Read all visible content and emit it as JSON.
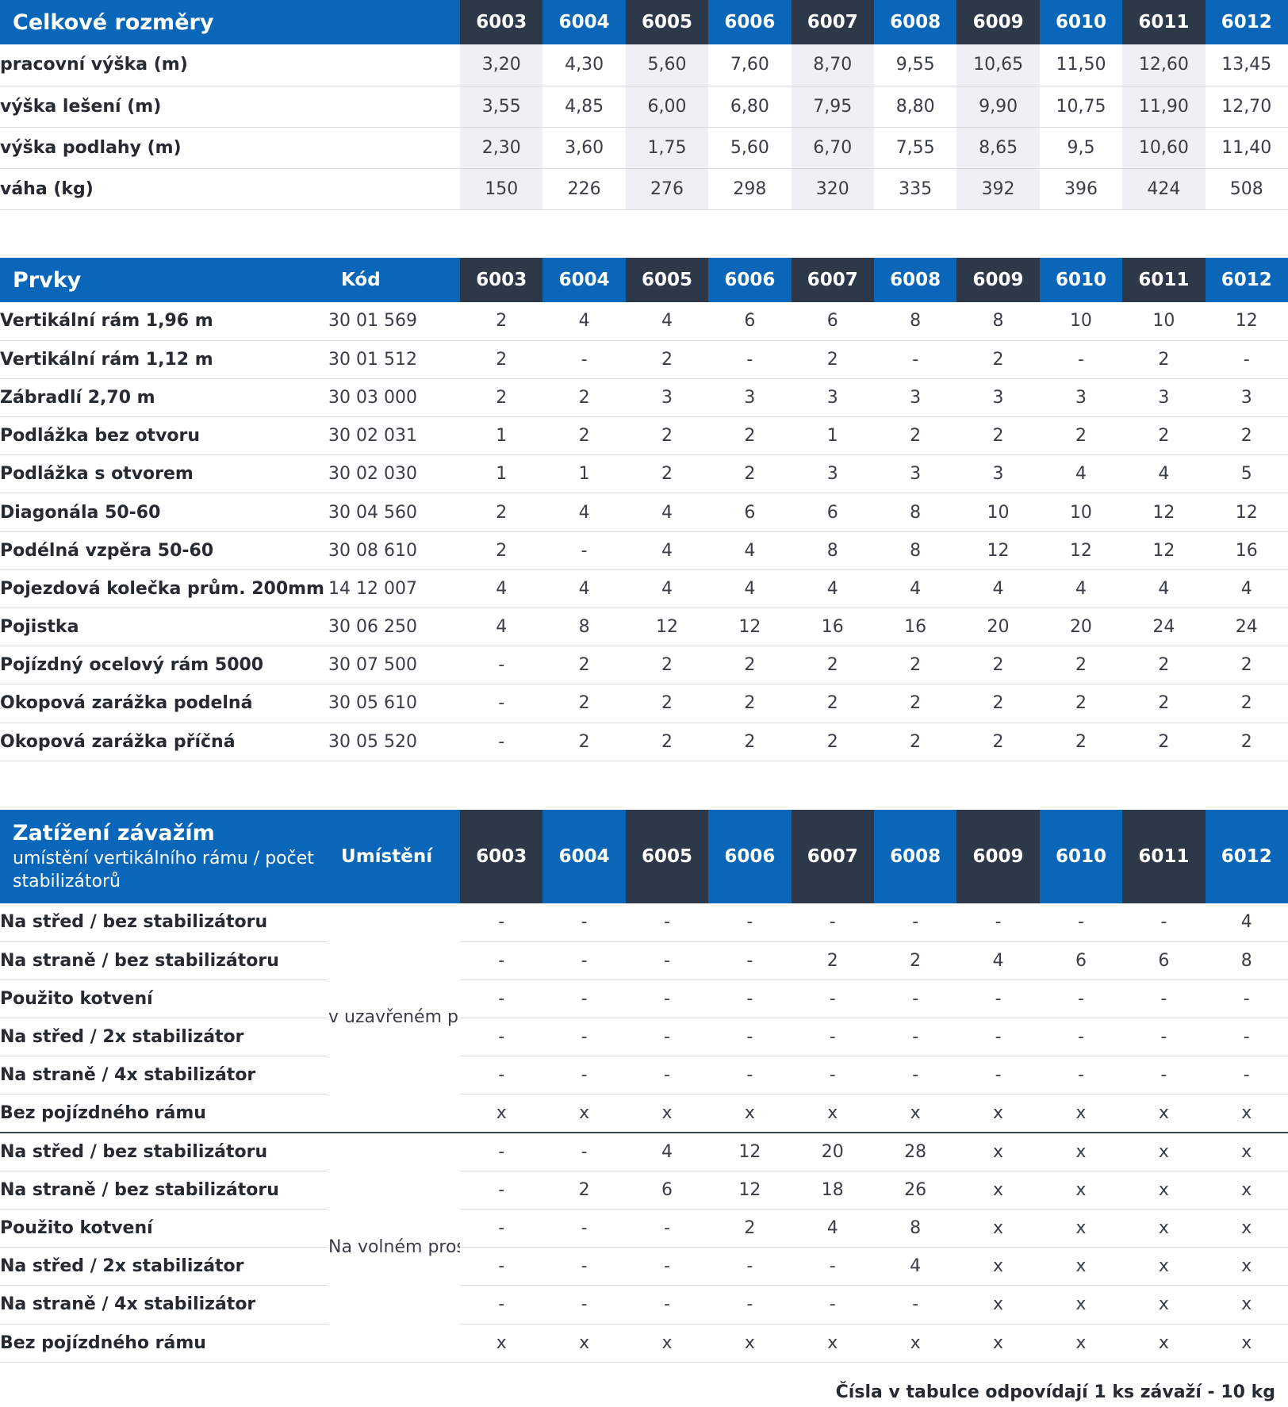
{
  "models": [
    "6003",
    "6004",
    "6005",
    "6006",
    "6007",
    "6008",
    "6009",
    "6010",
    "6011",
    "6012"
  ],
  "dimensions": {
    "title": "Celkové rozměry",
    "rows": [
      {
        "label": "pracovní výška (m)",
        "values": [
          "3,20",
          "4,30",
          "5,60",
          "7,60",
          "8,70",
          "9,55",
          "10,65",
          "11,50",
          "12,60",
          "13,45"
        ]
      },
      {
        "label": "výška lešení (m)",
        "values": [
          "3,55",
          "4,85",
          "6,00",
          "6,80",
          "7,95",
          "8,80",
          "9,90",
          "10,75",
          "11,90",
          "12,70"
        ]
      },
      {
        "label": "výška podlahy (m)",
        "values": [
          "2,30",
          "3,60",
          "1,75",
          "5,60",
          "6,70",
          "7,55",
          "8,65",
          "9,5",
          "10,60",
          "11,40"
        ]
      },
      {
        "label": "váha (kg)",
        "values": [
          "150",
          "226",
          "276",
          "298",
          "320",
          "335",
          "392",
          "396",
          "424",
          "508"
        ]
      }
    ]
  },
  "elements": {
    "title": "Prvky",
    "code_header": "Kód",
    "rows": [
      {
        "label": "Vertikální rám 1,96 m",
        "code": "30 01 569",
        "values": [
          "2",
          "4",
          "4",
          "6",
          "6",
          "8",
          "8",
          "10",
          "10",
          "12"
        ]
      },
      {
        "label": "Vertikální rám 1,12 m",
        "code": "30 01 512",
        "values": [
          "2",
          "-",
          "2",
          "-",
          "2",
          "-",
          "2",
          "-",
          "2",
          "-"
        ]
      },
      {
        "label": "Zábradlí 2,70 m",
        "code": "30 03 000",
        "values": [
          "2",
          "2",
          "3",
          "3",
          "3",
          "3",
          "3",
          "3",
          "3",
          "3"
        ]
      },
      {
        "label": "Podlážka bez otvoru",
        "code": "30 02 031",
        "values": [
          "1",
          "2",
          "2",
          "2",
          "1",
          "2",
          "2",
          "2",
          "2",
          "2"
        ]
      },
      {
        "label": "Podlážka s otvorem",
        "code": "30 02 030",
        "values": [
          "1",
          "1",
          "2",
          "2",
          "3",
          "3",
          "3",
          "4",
          "4",
          "5"
        ]
      },
      {
        "label": "Diagonála 50-60",
        "code": "30 04 560",
        "values": [
          "2",
          "4",
          "4",
          "6",
          "6",
          "8",
          "10",
          "10",
          "12",
          "12"
        ]
      },
      {
        "label": "Podélná vzpěra 50-60",
        "code": "30 08 610",
        "values": [
          "2",
          "-",
          "4",
          "4",
          "8",
          "8",
          "12",
          "12",
          "12",
          "16"
        ]
      },
      {
        "label": "Pojezdová kolečka prům. 200mm",
        "code": "14 12 007",
        "values": [
          "4",
          "4",
          "4",
          "4",
          "4",
          "4",
          "4",
          "4",
          "4",
          "4"
        ]
      },
      {
        "label": "Pojistka",
        "code": "30 06 250",
        "values": [
          "4",
          "8",
          "12",
          "12",
          "16",
          "16",
          "20",
          "20",
          "24",
          "24"
        ]
      },
      {
        "label": "Pojízdný ocelový rám 5000",
        "code": "30 07 500",
        "values": [
          "-",
          "2",
          "2",
          "2",
          "2",
          "2",
          "2",
          "2",
          "2",
          "2"
        ]
      },
      {
        "label": "Okopová zarážka podelná",
        "code": "30 05 610",
        "values": [
          "-",
          "2",
          "2",
          "2",
          "2",
          "2",
          "2",
          "2",
          "2",
          "2"
        ]
      },
      {
        "label": "Okopová zarážka příčná",
        "code": "30 05 520",
        "values": [
          "-",
          "2",
          "2",
          "2",
          "2",
          "2",
          "2",
          "2",
          "2",
          "2"
        ]
      }
    ]
  },
  "loads": {
    "title": "Zatížení závažím",
    "subtitle": "umístění vertikálního rámu / počet stabilizátorů",
    "location_header": "Umístění",
    "groups": [
      {
        "location": "v uzavřeném prostoru",
        "rows": [
          {
            "label": "Na střed / bez stabilizátoru",
            "values": [
              "-",
              "-",
              "-",
              "-",
              "-",
              "-",
              "-",
              "-",
              "-",
              "4"
            ]
          },
          {
            "label": "Na straně / bez stabilizátoru",
            "values": [
              "-",
              "-",
              "-",
              "-",
              "2",
              "2",
              "4",
              "6",
              "6",
              "8"
            ]
          },
          {
            "label": "Použito kotvení",
            "values": [
              "-",
              "-",
              "-",
              "-",
              "-",
              "-",
              "-",
              "-",
              "-",
              "-"
            ]
          },
          {
            "label": "Na střed / 2x stabilizátor",
            "values": [
              "-",
              "-",
              "-",
              "-",
              "-",
              "-",
              "-",
              "-",
              "-",
              "-"
            ]
          },
          {
            "label": "Na straně / 4x stabilizátor",
            "values": [
              "-",
              "-",
              "-",
              "-",
              "-",
              "-",
              "-",
              "-",
              "-",
              "-"
            ]
          },
          {
            "label": "Bez pojízdného rámu",
            "values": [
              "x",
              "x",
              "x",
              "x",
              "x",
              "x",
              "x",
              "x",
              "x",
              "x"
            ]
          }
        ]
      },
      {
        "location": "Na volném prostranství",
        "rows": [
          {
            "label": "Na střed / bez stabilizátoru",
            "values": [
              "-",
              "-",
              "4",
              "12",
              "20",
              "28",
              "x",
              "x",
              "x",
              "x"
            ]
          },
          {
            "label": "Na straně / bez stabilizátoru",
            "values": [
              "-",
              "2",
              "6",
              "12",
              "18",
              "26",
              "x",
              "x",
              "x",
              "x"
            ]
          },
          {
            "label": "Použito kotvení",
            "values": [
              "-",
              "-",
              "-",
              "2",
              "4",
              "8",
              "x",
              "x",
              "x",
              "x"
            ]
          },
          {
            "label": "Na střed / 2x stabilizátor",
            "values": [
              "-",
              "-",
              "-",
              "-",
              "-",
              "4",
              "x",
              "x",
              "x",
              "x"
            ]
          },
          {
            "label": "Na straně / 4x stabilizátor",
            "values": [
              "-",
              "-",
              "-",
              "-",
              "-",
              "-",
              "x",
              "x",
              "x",
              "x"
            ]
          },
          {
            "label": "Bez pojízdného rámu",
            "values": [
              "x",
              "x",
              "x",
              "x",
              "x",
              "x",
              "x",
              "x",
              "x",
              "x"
            ]
          }
        ]
      }
    ]
  },
  "footnote": "Čísla v tabulce odpovídají 1 ks závaží - 10 kg"
}
